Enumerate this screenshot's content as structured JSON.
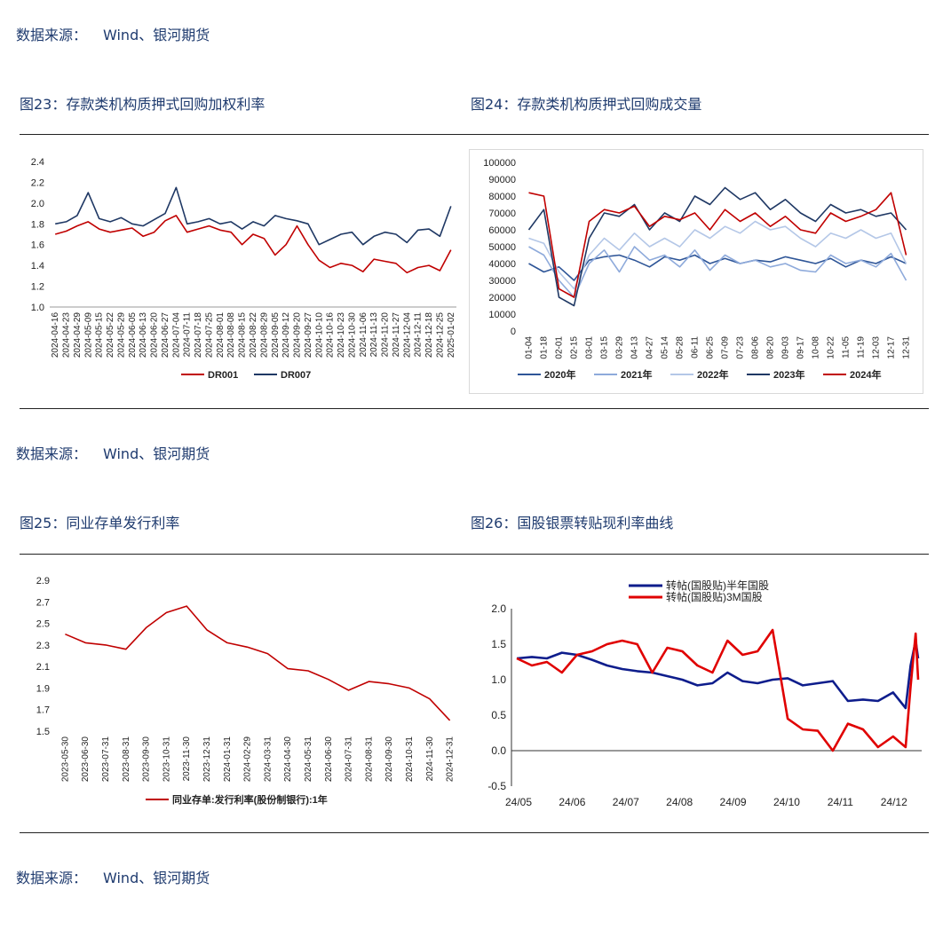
{
  "source_text": {
    "label": "数据来源：",
    "value": "Wind、银河期货"
  },
  "titles": {
    "c23": "图23：存款类机构质押式回购加权利率",
    "c24": "图24：存款类机构质押式回购成交量",
    "c25": "图25：同业存单发行利率",
    "c26": "图26：国股银票转贴现利率曲线"
  },
  "chart_data": [
    {
      "id": "c23",
      "type": "line",
      "title": "",
      "ylim": [
        1.0,
        2.4
      ],
      "yticks": [
        "1.0",
        "1.2",
        "1.4",
        "1.6",
        "1.8",
        "2.0",
        "2.2",
        "2.4"
      ],
      "x_tick_labels": [
        "2024-04-16",
        "2024-04-23",
        "2024-04-29",
        "2024-05-09",
        "2024-05-15",
        "2024-05-22",
        "2024-05-29",
        "2024-06-05",
        "2024-06-13",
        "2024-06-20",
        "2024-06-27",
        "2024-07-04",
        "2024-07-11",
        "2024-07-18",
        "2024-07-25",
        "2024-08-01",
        "2024-08-08",
        "2024-08-15",
        "2024-08-22",
        "2024-08-29",
        "2024-09-05",
        "2024-09-12",
        "2024-09-20",
        "2024-09-27",
        "2024-10-10",
        "2024-10-16",
        "2024-10-23",
        "2024-10-30",
        "2024-11-06",
        "2024-11-13",
        "2024-11-20",
        "2024-11-27",
        "2024-12-04",
        "2024-12-11",
        "2024-12-18",
        "2024-12-25",
        "2025-01-02"
      ],
      "legend": "bottom",
      "series": [
        {
          "name": "DR001",
          "color": "#c00000",
          "values": [
            1.7,
            1.73,
            1.78,
            1.82,
            1.75,
            1.72,
            1.74,
            1.76,
            1.68,
            1.72,
            1.83,
            1.88,
            1.72,
            1.75,
            1.78,
            1.74,
            1.72,
            1.6,
            1.7,
            1.66,
            1.5,
            1.6,
            1.78,
            1.6,
            1.45,
            1.38,
            1.42,
            1.4,
            1.34,
            1.46,
            1.44,
            1.42,
            1.33,
            1.38,
            1.4,
            1.35,
            1.55
          ]
        },
        {
          "name": "DR007",
          "color": "#1f3864",
          "values": [
            1.8,
            1.82,
            1.88,
            2.1,
            1.85,
            1.82,
            1.86,
            1.8,
            1.78,
            1.84,
            1.9,
            2.15,
            1.8,
            1.82,
            1.85,
            1.8,
            1.82,
            1.75,
            1.82,
            1.78,
            1.88,
            1.85,
            1.83,
            1.8,
            1.6,
            1.65,
            1.7,
            1.72,
            1.6,
            1.68,
            1.72,
            1.7,
            1.62,
            1.74,
            1.75,
            1.68,
            1.97
          ]
        }
      ]
    },
    {
      "id": "c24",
      "type": "line",
      "title": "",
      "ylim": [
        0,
        100000
      ],
      "yticks": [
        "0",
        "10000",
        "20000",
        "30000",
        "40000",
        "50000",
        "60000",
        "70000",
        "80000",
        "90000",
        "100000"
      ],
      "x_tick_labels": [
        "01-04",
        "01-18",
        "02-01",
        "02-15",
        "03-01",
        "03-15",
        "03-29",
        "04-13",
        "04-27",
        "05-14",
        "05-28",
        "06-11",
        "06-25",
        "07-09",
        "07-23",
        "08-06",
        "08-20",
        "09-03",
        "09-17",
        "10-08",
        "10-22",
        "11-05",
        "11-19",
        "12-03",
        "12-17",
        "12-31"
      ],
      "legend": "bottom",
      "series": [
        {
          "name": "2020年",
          "color": "#2e5597",
          "values": [
            40000,
            35000,
            38000,
            30000,
            42000,
            44000,
            45000,
            42000,
            38000,
            44000,
            42000,
            45000,
            40000,
            43000,
            40000,
            42000,
            41000,
            44000,
            42000,
            40000,
            43000,
            38000,
            42000,
            40000,
            44000,
            40000
          ]
        },
        {
          "name": "2021年",
          "color": "#8eaadb",
          "values": [
            50000,
            45000,
            30000,
            20000,
            40000,
            48000,
            35000,
            50000,
            42000,
            45000,
            38000,
            48000,
            36000,
            45000,
            40000,
            42000,
            38000,
            40000,
            36000,
            35000,
            45000,
            40000,
            42000,
            38000,
            46000,
            30000
          ]
        },
        {
          "name": "2022年",
          "color": "#b4c7e7",
          "values": [
            55000,
            52000,
            35000,
            25000,
            45000,
            55000,
            48000,
            58000,
            50000,
            55000,
            50000,
            60000,
            55000,
            62000,
            58000,
            65000,
            60000,
            62000,
            55000,
            50000,
            58000,
            55000,
            60000,
            55000,
            58000,
            40000
          ]
        },
        {
          "name": "2023年",
          "color": "#1f3864",
          "values": [
            60000,
            72000,
            20000,
            15000,
            55000,
            70000,
            68000,
            75000,
            60000,
            70000,
            65000,
            80000,
            75000,
            85000,
            78000,
            82000,
            72000,
            78000,
            70000,
            65000,
            75000,
            70000,
            72000,
            68000,
            70000,
            60000
          ]
        },
        {
          "name": "2024年",
          "color": "#c00000",
          "values": [
            82000,
            80000,
            25000,
            20000,
            65000,
            72000,
            70000,
            74000,
            62000,
            68000,
            66000,
            70000,
            60000,
            72000,
            65000,
            70000,
            62000,
            68000,
            60000,
            58000,
            70000,
            65000,
            68000,
            72000,
            82000,
            45000
          ]
        }
      ]
    },
    {
      "id": "c25",
      "type": "line",
      "title": "",
      "ylim": [
        1.5,
        2.9
      ],
      "yticks": [
        "1.5",
        "1.7",
        "1.9",
        "2.1",
        "2.3",
        "2.5",
        "2.7",
        "2.9"
      ],
      "x_tick_labels": [
        "2023-05-30",
        "2023-06-30",
        "2023-07-31",
        "2023-08-31",
        "2023-09-30",
        "2023-10-31",
        "2023-11-30",
        "2023-12-31",
        "2024-01-31",
        "2024-02-29",
        "2024-03-31",
        "2024-04-30",
        "2024-05-31",
        "2024-06-30",
        "2024-07-31",
        "2024-08-31",
        "2024-09-30",
        "2024-10-31",
        "2024-11-30",
        "2024-12-31"
      ],
      "legend": "bottom",
      "series": [
        {
          "name": "同业存单:发行利率(股份制银行):1年",
          "color": "#c00000",
          "values": [
            2.4,
            2.32,
            2.3,
            2.26,
            2.46,
            2.6,
            2.66,
            2.44,
            2.32,
            2.28,
            2.22,
            2.08,
            2.06,
            1.98,
            1.88,
            1.96,
            1.94,
            1.9,
            1.8,
            1.6
          ]
        }
      ]
    },
    {
      "id": "c26",
      "type": "line",
      "title": "",
      "ylim": [
        -0.5,
        2.0
      ],
      "yticks": [
        "-0.5",
        "0.0",
        "0.5",
        "1.0",
        "1.5",
        "2.0"
      ],
      "x_tick_labels": [
        "24/05",
        "24/06",
        "24/07",
        "24/08",
        "24/09",
        "24/10",
        "24/11",
        "24/12"
      ],
      "legend": "top",
      "x": [
        0,
        0.3,
        0.6,
        0.9,
        1.2,
        1.5,
        1.8,
        2.1,
        2.4,
        2.7,
        3.0,
        3.3,
        3.6,
        3.9,
        4.2,
        4.5,
        4.8,
        5.1,
        5.4,
        5.7,
        6.0,
        6.3,
        6.6,
        6.9,
        7.2,
        7.5,
        7.75,
        7.85,
        7.95,
        8.0
      ],
      "series": [
        {
          "name": "转帖(国股贴)半年国股",
          "color": "#0e1d8c",
          "values": [
            1.3,
            1.32,
            1.3,
            1.38,
            1.35,
            1.28,
            1.2,
            1.15,
            1.12,
            1.1,
            1.05,
            1.0,
            0.92,
            0.95,
            1.1,
            0.98,
            0.95,
            1.0,
            1.02,
            0.92,
            0.95,
            0.98,
            0.7,
            0.72,
            0.7,
            0.82,
            0.6,
            1.2,
            1.55,
            1.3
          ]
        },
        {
          "name": "转帖(国股贴)3M国股",
          "color": "#e00000",
          "values": [
            1.3,
            1.2,
            1.25,
            1.1,
            1.35,
            1.4,
            1.5,
            1.55,
            1.5,
            1.1,
            1.45,
            1.4,
            1.2,
            1.1,
            1.55,
            1.35,
            1.4,
            1.7,
            0.45,
            0.3,
            0.28,
            0.0,
            0.38,
            0.3,
            0.05,
            0.2,
            0.05,
            0.9,
            1.65,
            1.0
          ]
        }
      ]
    }
  ]
}
